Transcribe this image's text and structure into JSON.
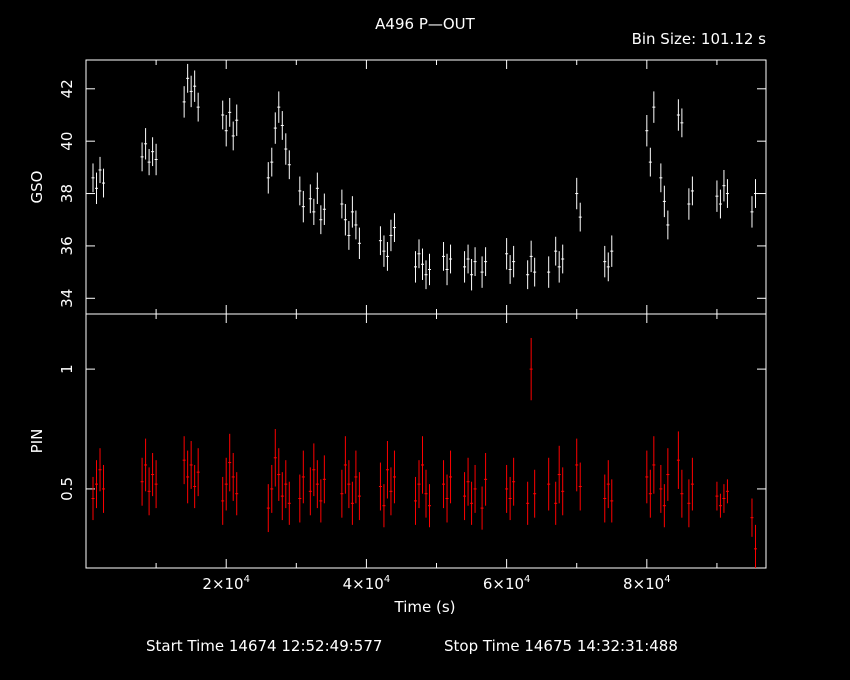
{
  "header": {
    "title": "A496 P—OUT",
    "bin_size": "Bin Size: 101.12 s"
  },
  "footer": {
    "start_time": "Start Time 14674 12:52:49:577",
    "stop_time": "Stop Time 14675 14:32:31:488"
  },
  "colors": {
    "background": "#000000",
    "gso": "#ffffff",
    "pin": "#ff0000",
    "axes": "#ffffff"
  },
  "chart_data": [
    {
      "type": "scatter",
      "panel": "top",
      "ylabel": "GSO",
      "xlim": [
        0,
        97000
      ],
      "ylim": [
        33.4,
        43.1
      ],
      "yticks": [
        34,
        36,
        38,
        40,
        42
      ],
      "ytick_labels": [
        "34",
        "36",
        "38",
        "40",
        "42"
      ],
      "error_bars": true,
      "series": [
        {
          "color": "#ffffff",
          "x": [
            1000,
            1500,
            2000,
            2500,
            8000,
            8500,
            9000,
            9500,
            10000,
            14000,
            14500,
            15000,
            15500,
            16000,
            19500,
            20000,
            20500,
            21000,
            21500,
            26000,
            26500,
            27000,
            27500,
            28000,
            28500,
            29000,
            30500,
            31000,
            32000,
            32500,
            33000,
            33500,
            34000,
            36500,
            37000,
            37500,
            38000,
            38500,
            39000,
            42000,
            42500,
            43000,
            43500,
            44000,
            47000,
            47500,
            48000,
            48500,
            49000,
            51000,
            51500,
            52000,
            54000,
            54500,
            55000,
            55500,
            56500,
            57000,
            60000,
            60500,
            61000,
            63000,
            63500,
            64000,
            66000,
            67000,
            67500,
            68000,
            70000,
            70500,
            74000,
            74500,
            75000,
            80000,
            80500,
            81000,
            82000,
            82500,
            83000,
            84500,
            85000,
            86000,
            86500,
            90000,
            90500,
            91000,
            91500,
            95000,
            95500
          ],
          "y": [
            38.6,
            38.2,
            38.9,
            38.4,
            39.4,
            39.9,
            39.2,
            39.6,
            39.3,
            41.5,
            42.4,
            41.9,
            42.1,
            41.3,
            41.0,
            40.4,
            41.1,
            40.2,
            40.8,
            38.6,
            39.2,
            40.5,
            41.3,
            40.6,
            39.7,
            39.1,
            38.1,
            37.5,
            37.8,
            37.3,
            38.2,
            37.0,
            37.4,
            37.6,
            37.0,
            36.4,
            37.3,
            36.8,
            36.1,
            36.2,
            35.8,
            35.6,
            36.4,
            36.7,
            35.2,
            35.7,
            35.3,
            34.9,
            35.1,
            35.6,
            35.1,
            35.5,
            35.2,
            35.5,
            34.9,
            35.4,
            35.0,
            35.4,
            35.7,
            35.1,
            35.4,
            34.9,
            35.6,
            35.0,
            35.0,
            35.8,
            35.2,
            35.5,
            38.0,
            37.1,
            35.4,
            35.2,
            35.8,
            40.4,
            39.2,
            41.3,
            38.6,
            37.7,
            36.8,
            41.0,
            40.7,
            37.6,
            38.1,
            37.9,
            37.6,
            38.3,
            38.0,
            37.3,
            38.0
          ],
          "y_err": [
            0.55,
            0.6,
            0.5,
            0.55,
            0.55,
            0.6,
            0.5,
            0.55,
            0.6,
            0.6,
            0.55,
            0.6,
            0.6,
            0.55,
            0.55,
            0.6,
            0.55,
            0.55,
            0.6,
            0.6,
            0.55,
            0.6,
            0.6,
            0.55,
            0.6,
            0.55,
            0.55,
            0.6,
            0.55,
            0.5,
            0.6,
            0.55,
            0.6,
            0.55,
            0.6,
            0.55,
            0.6,
            0.55,
            0.6,
            0.55,
            0.6,
            0.55,
            0.6,
            0.55,
            0.6,
            0.55,
            0.6,
            0.55,
            0.6,
            0.55,
            0.6,
            0.55,
            0.6,
            0.55,
            0.6,
            0.55,
            0.6,
            0.55,
            0.6,
            0.55,
            0.6,
            0.55,
            0.6,
            0.55,
            0.6,
            0.55,
            0.6,
            0.55,
            0.6,
            0.55,
            0.6,
            0.55,
            0.6,
            0.6,
            0.55,
            0.6,
            0.55,
            0.6,
            0.55,
            0.6,
            0.55,
            0.6,
            0.55,
            0.6,
            0.55,
            0.6,
            0.55,
            0.6,
            0.55
          ]
        }
      ]
    },
    {
      "type": "scatter",
      "panel": "bottom",
      "ylabel": "PIN",
      "xlabel": "Time (s)",
      "xlim": [
        0,
        97000
      ],
      "ylim": [
        0.17,
        1.23
      ],
      "yticks": [
        0.5,
        1
      ],
      "ytick_labels": [
        "0.5",
        "1"
      ],
      "xticks": [
        20000,
        40000,
        60000,
        80000
      ],
      "xtick_labels": [
        "2×10",
        "4×10",
        "6×10",
        "8×10"
      ],
      "xtick_exponent": "4",
      "error_bars": true,
      "series": [
        {
          "color": "#ff0000",
          "x": [
            1000,
            1500,
            2000,
            2500,
            8000,
            8500,
            9000,
            9500,
            10000,
            14000,
            14500,
            15000,
            15500,
            16000,
            19500,
            20000,
            20500,
            21000,
            21500,
            26000,
            26500,
            27000,
            27500,
            28000,
            28500,
            29000,
            30500,
            31000,
            32000,
            32500,
            33000,
            33500,
            34000,
            36500,
            37000,
            37500,
            38000,
            38500,
            39000,
            42000,
            42500,
            43000,
            43500,
            44000,
            47000,
            47500,
            48000,
            48500,
            49000,
            51000,
            51500,
            52000,
            54000,
            54500,
            55000,
            55500,
            56500,
            57000,
            60000,
            60500,
            61000,
            63000,
            63500,
            64000,
            66000,
            67000,
            67500,
            68000,
            70000,
            70500,
            74000,
            74500,
            75000,
            80000,
            80500,
            81000,
            82000,
            82500,
            83000,
            84500,
            85000,
            86000,
            86500,
            90000,
            90500,
            91000,
            91500,
            95000,
            95500
          ],
          "y": [
            0.46,
            0.52,
            0.58,
            0.5,
            0.53,
            0.6,
            0.49,
            0.56,
            0.52,
            0.62,
            0.55,
            0.6,
            0.51,
            0.57,
            0.45,
            0.52,
            0.61,
            0.55,
            0.48,
            0.42,
            0.5,
            0.63,
            0.56,
            0.47,
            0.52,
            0.44,
            0.46,
            0.55,
            0.49,
            0.58,
            0.52,
            0.45,
            0.54,
            0.48,
            0.6,
            0.52,
            0.44,
            0.55,
            0.47,
            0.51,
            0.43,
            0.58,
            0.49,
            0.55,
            0.45,
            0.52,
            0.6,
            0.48,
            0.43,
            0.52,
            0.46,
            0.55,
            0.47,
            0.53,
            0.44,
            0.5,
            0.42,
            0.54,
            0.5,
            0.46,
            0.53,
            0.44,
            1.0,
            0.48,
            0.52,
            0.44,
            0.56,
            0.49,
            0.6,
            0.51,
            0.46,
            0.52,
            0.45,
            0.55,
            0.48,
            0.6,
            0.5,
            0.43,
            0.56,
            0.62,
            0.48,
            0.44,
            0.52,
            0.47,
            0.43,
            0.46,
            0.49,
            0.38,
            0.25
          ],
          "y_err": [
            0.09,
            0.1,
            0.09,
            0.1,
            0.1,
            0.11,
            0.1,
            0.09,
            0.1,
            0.1,
            0.11,
            0.1,
            0.09,
            0.1,
            0.1,
            0.11,
            0.12,
            0.1,
            0.09,
            0.1,
            0.1,
            0.12,
            0.11,
            0.1,
            0.1,
            0.09,
            0.1,
            0.11,
            0.1,
            0.11,
            0.1,
            0.09,
            0.1,
            0.1,
            0.12,
            0.1,
            0.09,
            0.11,
            0.1,
            0.1,
            0.09,
            0.12,
            0.1,
            0.11,
            0.1,
            0.1,
            0.12,
            0.1,
            0.09,
            0.1,
            0.1,
            0.11,
            0.1,
            0.1,
            0.09,
            0.1,
            0.09,
            0.11,
            0.1,
            0.09,
            0.1,
            0.09,
            0.13,
            0.1,
            0.11,
            0.09,
            0.12,
            0.1,
            0.11,
            0.1,
            0.1,
            0.1,
            0.09,
            0.11,
            0.1,
            0.12,
            0.1,
            0.09,
            0.11,
            0.12,
            0.1,
            0.1,
            0.11,
            0.06,
            0.05,
            0.06,
            0.05,
            0.08,
            0.1
          ]
        }
      ]
    }
  ]
}
